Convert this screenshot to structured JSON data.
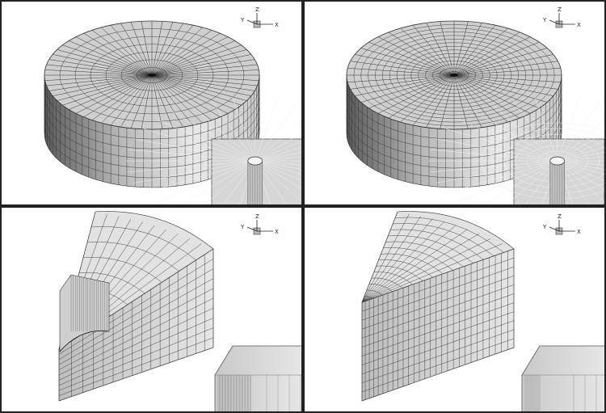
{
  "panels": [
    {
      "id": "top-left",
      "description_hidden": true
    },
    {
      "id": "top-right"
    },
    {
      "id": "bottom-left"
    },
    {
      "id": "bottom-right"
    }
  ],
  "triad": {
    "z": "Z",
    "y": "Y",
    "x": "X"
  },
  "colors": {
    "frame": "#222222",
    "mesh_line": "#333333",
    "face_light": "#e2e2e2",
    "face_mid": "#cfcfcf",
    "face_dark": "#9a9a9a",
    "inset_bg": "#d6d6d6"
  }
}
